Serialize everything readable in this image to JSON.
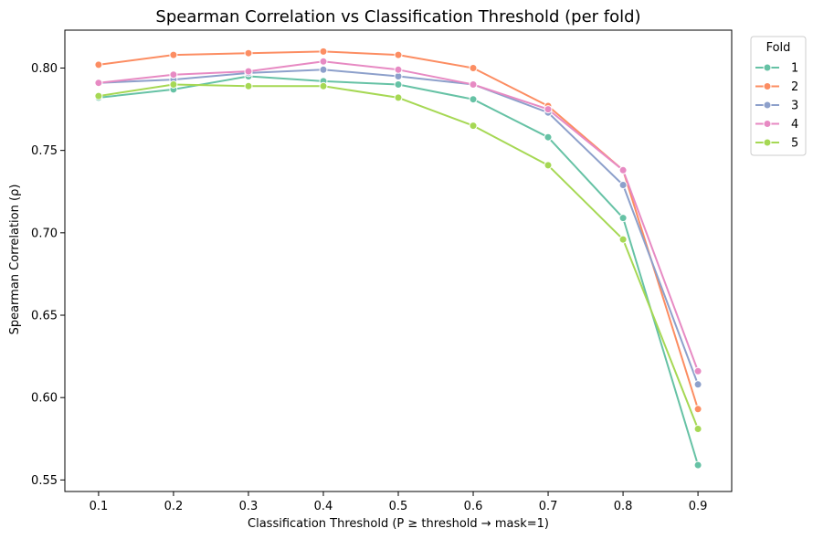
{
  "chart_data": {
    "type": "line",
    "title": "Spearman Correlation vs Classification Threshold (per fold)",
    "xlabel": "Classification Threshold (P ≥ threshold → mask=1)",
    "ylabel": "Spearman Correlation (ρ)",
    "x": [
      0.1,
      0.2,
      0.3,
      0.4,
      0.5,
      0.6,
      0.7,
      0.8,
      0.9
    ],
    "x_ticks": [
      "0.1",
      "0.2",
      "0.3",
      "0.4",
      "0.5",
      "0.6",
      "0.7",
      "0.8",
      "0.9"
    ],
    "y_ticks": [
      "0.55",
      "0.60",
      "0.65",
      "0.70",
      "0.75",
      "0.80"
    ],
    "xlim": [
      0.055,
      0.945
    ],
    "ylim": [
      0.543,
      0.823
    ],
    "grid": false,
    "legend": {
      "title": "Fold",
      "placement": "top-right, outside plot"
    },
    "series": [
      {
        "name": "1",
        "color": "#66c2a5",
        "values": [
          0.782,
          0.787,
          0.795,
          0.792,
          0.79,
          0.781,
          0.758,
          0.709,
          0.559
        ]
      },
      {
        "name": "2",
        "color": "#fc8d62",
        "values": [
          0.802,
          0.808,
          0.809,
          0.81,
          0.808,
          0.8,
          0.777,
          0.738,
          0.593
        ]
      },
      {
        "name": "3",
        "color": "#8da0cb",
        "values": [
          0.791,
          0.793,
          0.797,
          0.799,
          0.795,
          0.79,
          0.773,
          0.729,
          0.608
        ]
      },
      {
        "name": "4",
        "color": "#e78ac3",
        "values": [
          0.791,
          0.796,
          0.798,
          0.804,
          0.799,
          0.79,
          0.775,
          0.738,
          0.616
        ]
      },
      {
        "name": "5",
        "color": "#a6d854",
        "values": [
          0.783,
          0.79,
          0.789,
          0.789,
          0.782,
          0.765,
          0.741,
          0.696,
          0.581
        ]
      }
    ]
  }
}
